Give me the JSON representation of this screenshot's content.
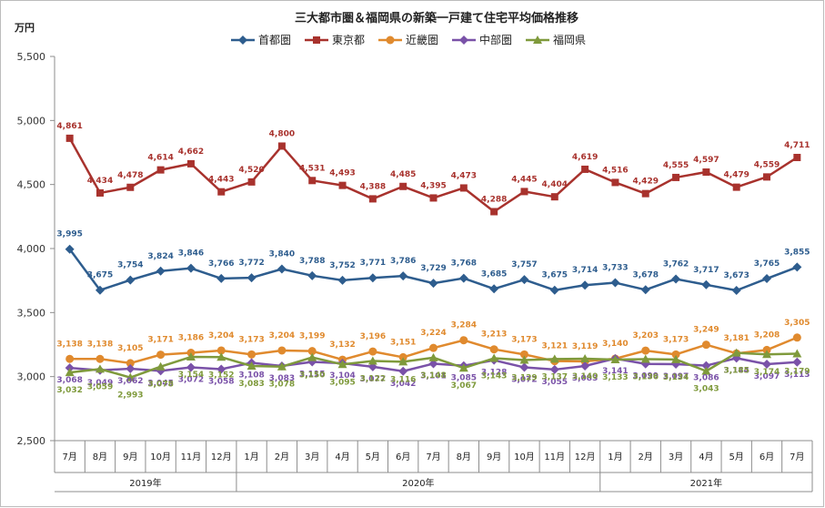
{
  "chart_data": {
    "type": "line",
    "title": "三大都市圏＆福岡県の新築一戸建て住宅平均価格推移",
    "ylabel": "万円",
    "ylim": [
      2500,
      5500
    ],
    "yticks": [
      "2,500",
      "3,000",
      "3,500",
      "4,000",
      "4,500",
      "5,000",
      "5,500"
    ],
    "grid": false,
    "legend_position": "top",
    "categories": [
      "7月",
      "8月",
      "9月",
      "10月",
      "11月",
      "12月",
      "1月",
      "2月",
      "3月",
      "4月",
      "5月",
      "6月",
      "7月",
      "8月",
      "9月",
      "10月",
      "11月",
      "12月",
      "1月",
      "2月",
      "3月",
      "4月",
      "5月",
      "6月",
      "7月"
    ],
    "years": [
      {
        "label": "2019年",
        "start": 0,
        "end": 5
      },
      {
        "label": "2020年",
        "start": 6,
        "end": 17
      },
      {
        "label": "2021年",
        "start": 18,
        "end": 24
      }
    ],
    "series": [
      {
        "name": "首都圏",
        "color": "#2e5d8e",
        "marker": "diamond",
        "values": [
          3995,
          3675,
          3754,
          3824,
          3846,
          3766,
          3772,
          3840,
          3788,
          3752,
          3771,
          3786,
          3729,
          3768,
          3685,
          3757,
          3675,
          3714,
          3733,
          3678,
          3762,
          3717,
          3673,
          3765,
          3855
        ],
        "labels": [
          "3,995",
          "3,675",
          "3,754",
          "3,824",
          "3,846",
          "3,766",
          "3,772",
          "3,840",
          "3,788",
          "3,752",
          "3,771",
          "3,786",
          "3,729",
          "3,768",
          "3,685",
          "3,757",
          "3,675",
          "3,714",
          "3,733",
          "3,678",
          "3,762",
          "3,717",
          "3,673",
          "3,765",
          "3,855"
        ]
      },
      {
        "name": "東京都",
        "color": "#a8322d",
        "marker": "square",
        "values": [
          4861,
          4434,
          4478,
          4614,
          4662,
          4443,
          4520,
          4800,
          4531,
          4493,
          4388,
          4485,
          4395,
          4473,
          4288,
          4445,
          4404,
          4619,
          4516,
          4429,
          4555,
          4597,
          4479,
          4559,
          4711
        ],
        "labels": [
          "4,861",
          "4,434",
          "4,478",
          "4,614",
          "4,662",
          "4,443",
          "4,520",
          "4,800",
          "4,531",
          "4,493",
          "4,388",
          "4,485",
          "4,395",
          "4,473",
          "4,288",
          "4,445",
          "4,404",
          "4,619",
          "4,516",
          "4,429",
          "4,555",
          "4,597",
          "4,479",
          "4,559",
          "4,711"
        ]
      },
      {
        "name": "近畿圏",
        "color": "#e08a2e",
        "marker": "circle",
        "values": [
          3138,
          3138,
          3105,
          3171,
          3186,
          3204,
          3173,
          3204,
          3199,
          3132,
          3196,
          3151,
          3224,
          3284,
          3213,
          3173,
          3121,
          3119,
          3140,
          3203,
          3173,
          3249,
          3181,
          3208,
          3305
        ],
        "labels": [
          "3,138",
          "3,138",
          "3,105",
          "3,171",
          "3,186",
          "3,204",
          "3,173",
          "3,204",
          "3,199",
          "3,132",
          "3,196",
          "3,151",
          "3,224",
          "3,284",
          "3,213",
          "3,173",
          "3,121",
          "3,119",
          "3,140",
          "3,203",
          "3,173",
          "3,249",
          "3,181",
          "3,208",
          "3,305"
        ]
      },
      {
        "name": "中部圏",
        "color": "#7a52a8",
        "marker": "diamond",
        "values": [
          3068,
          3049,
          3062,
          3045,
          3072,
          3058,
          3108,
          3083,
          3115,
          3104,
          3077,
          3042,
          3101,
          3085,
          3128,
          3072,
          3055,
          3083,
          3141,
          3099,
          3097,
          3086,
          3144,
          3097,
          3113
        ],
        "labels": [
          "3,068",
          "3,049",
          "3,062",
          "3,045",
          "3,072",
          "3,058",
          "3,108",
          "3,083",
          "3,115",
          "3,104",
          "3,077",
          "3,042",
          "3,101",
          "3,085",
          "3,128",
          "3,072",
          "3,055",
          "3,083",
          "3,141",
          "3,099",
          "3,097",
          "3,086",
          "3,144",
          "3,097",
          "3,113"
        ]
      },
      {
        "name": "福岡県",
        "color": "#7f9a3c",
        "marker": "triangle",
        "values": [
          3032,
          3059,
          2993,
          3078,
          3154,
          3152,
          3083,
          3078,
          3150,
          3095,
          3122,
          3116,
          3148,
          3067,
          3143,
          3129,
          3137,
          3140,
          3133,
          3136,
          3134,
          3043,
          3185,
          3174,
          3179
        ],
        "labels": [
          "3,032",
          "3,059",
          "2,993",
          "3,078",
          "3,154",
          "3,152",
          "3,083",
          "3,078",
          "3,150",
          "3,095",
          "3,122",
          "3,116",
          "3,148",
          "3,067",
          "3,143",
          "3,129",
          "3,137",
          "3,140",
          "3,133",
          "3,136",
          "3,134",
          "3,043",
          "3,185",
          "3,174",
          "3,179"
        ]
      }
    ]
  }
}
